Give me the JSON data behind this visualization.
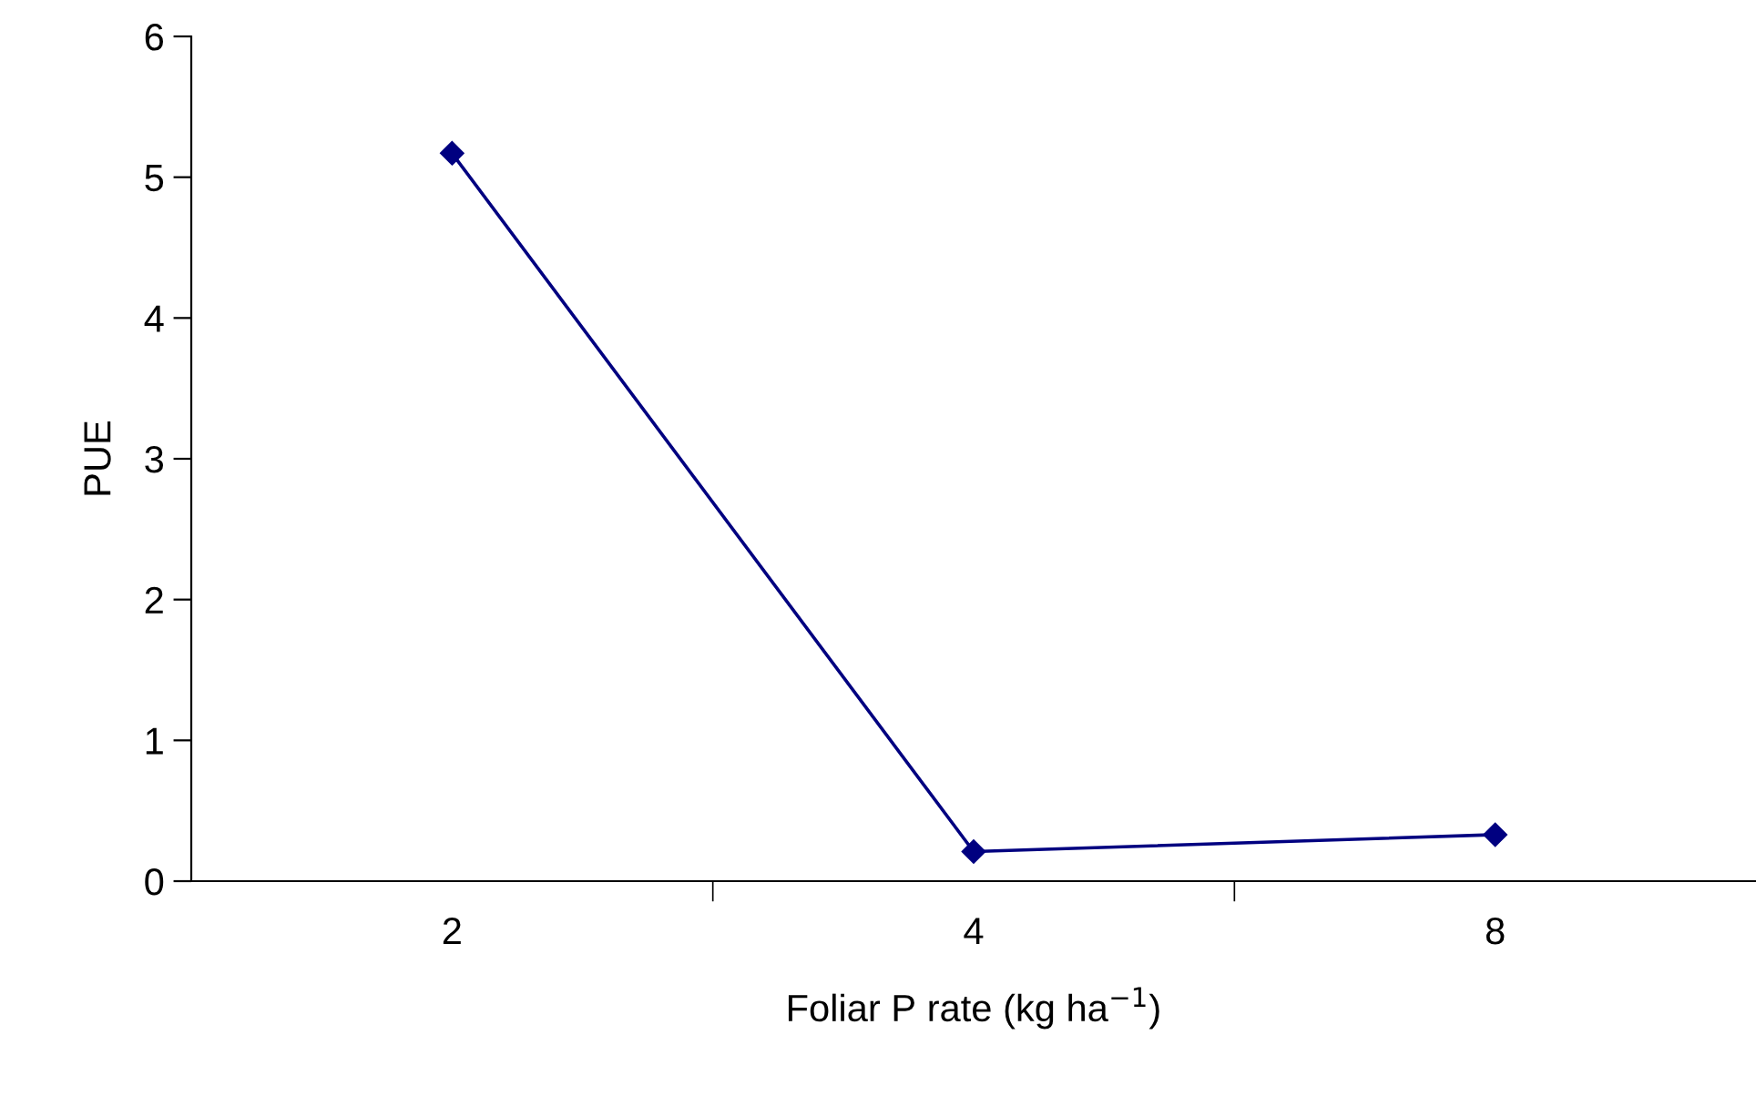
{
  "chart_data": {
    "type": "line",
    "xlabel": "Foliar P rate (kg ha$^{−1}$)",
    "ylabel": "PUE",
    "categories": [
      "2",
      "4",
      "8"
    ],
    "series": [
      {
        "color": "#000080",
        "values": [
          5.17,
          0.21,
          0.33
        ]
      }
    ],
    "ylim": [
      0,
      6
    ],
    "yticks": [
      0,
      1,
      2,
      3,
      4,
      5,
      6
    ],
    "marker": "diamond",
    "line_style": "solid",
    "grid": false,
    "legend": false
  }
}
